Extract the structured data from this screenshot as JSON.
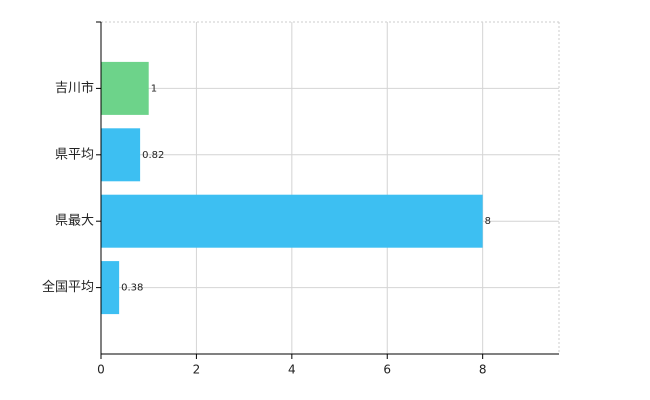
{
  "chart_data": {
    "type": "bar",
    "orientation": "horizontal",
    "categories": [
      "吉川市",
      "県平均",
      "県最大",
      "全国平均"
    ],
    "values": [
      1,
      0.82,
      8,
      0.38
    ],
    "colors": [
      "#6dd38a",
      "#3dbff2",
      "#3dbff2",
      "#3dbff2"
    ],
    "xlim": [
      0,
      9.6
    ],
    "xticks": [
      0,
      2,
      4,
      6,
      8
    ],
    "grid": true
  }
}
